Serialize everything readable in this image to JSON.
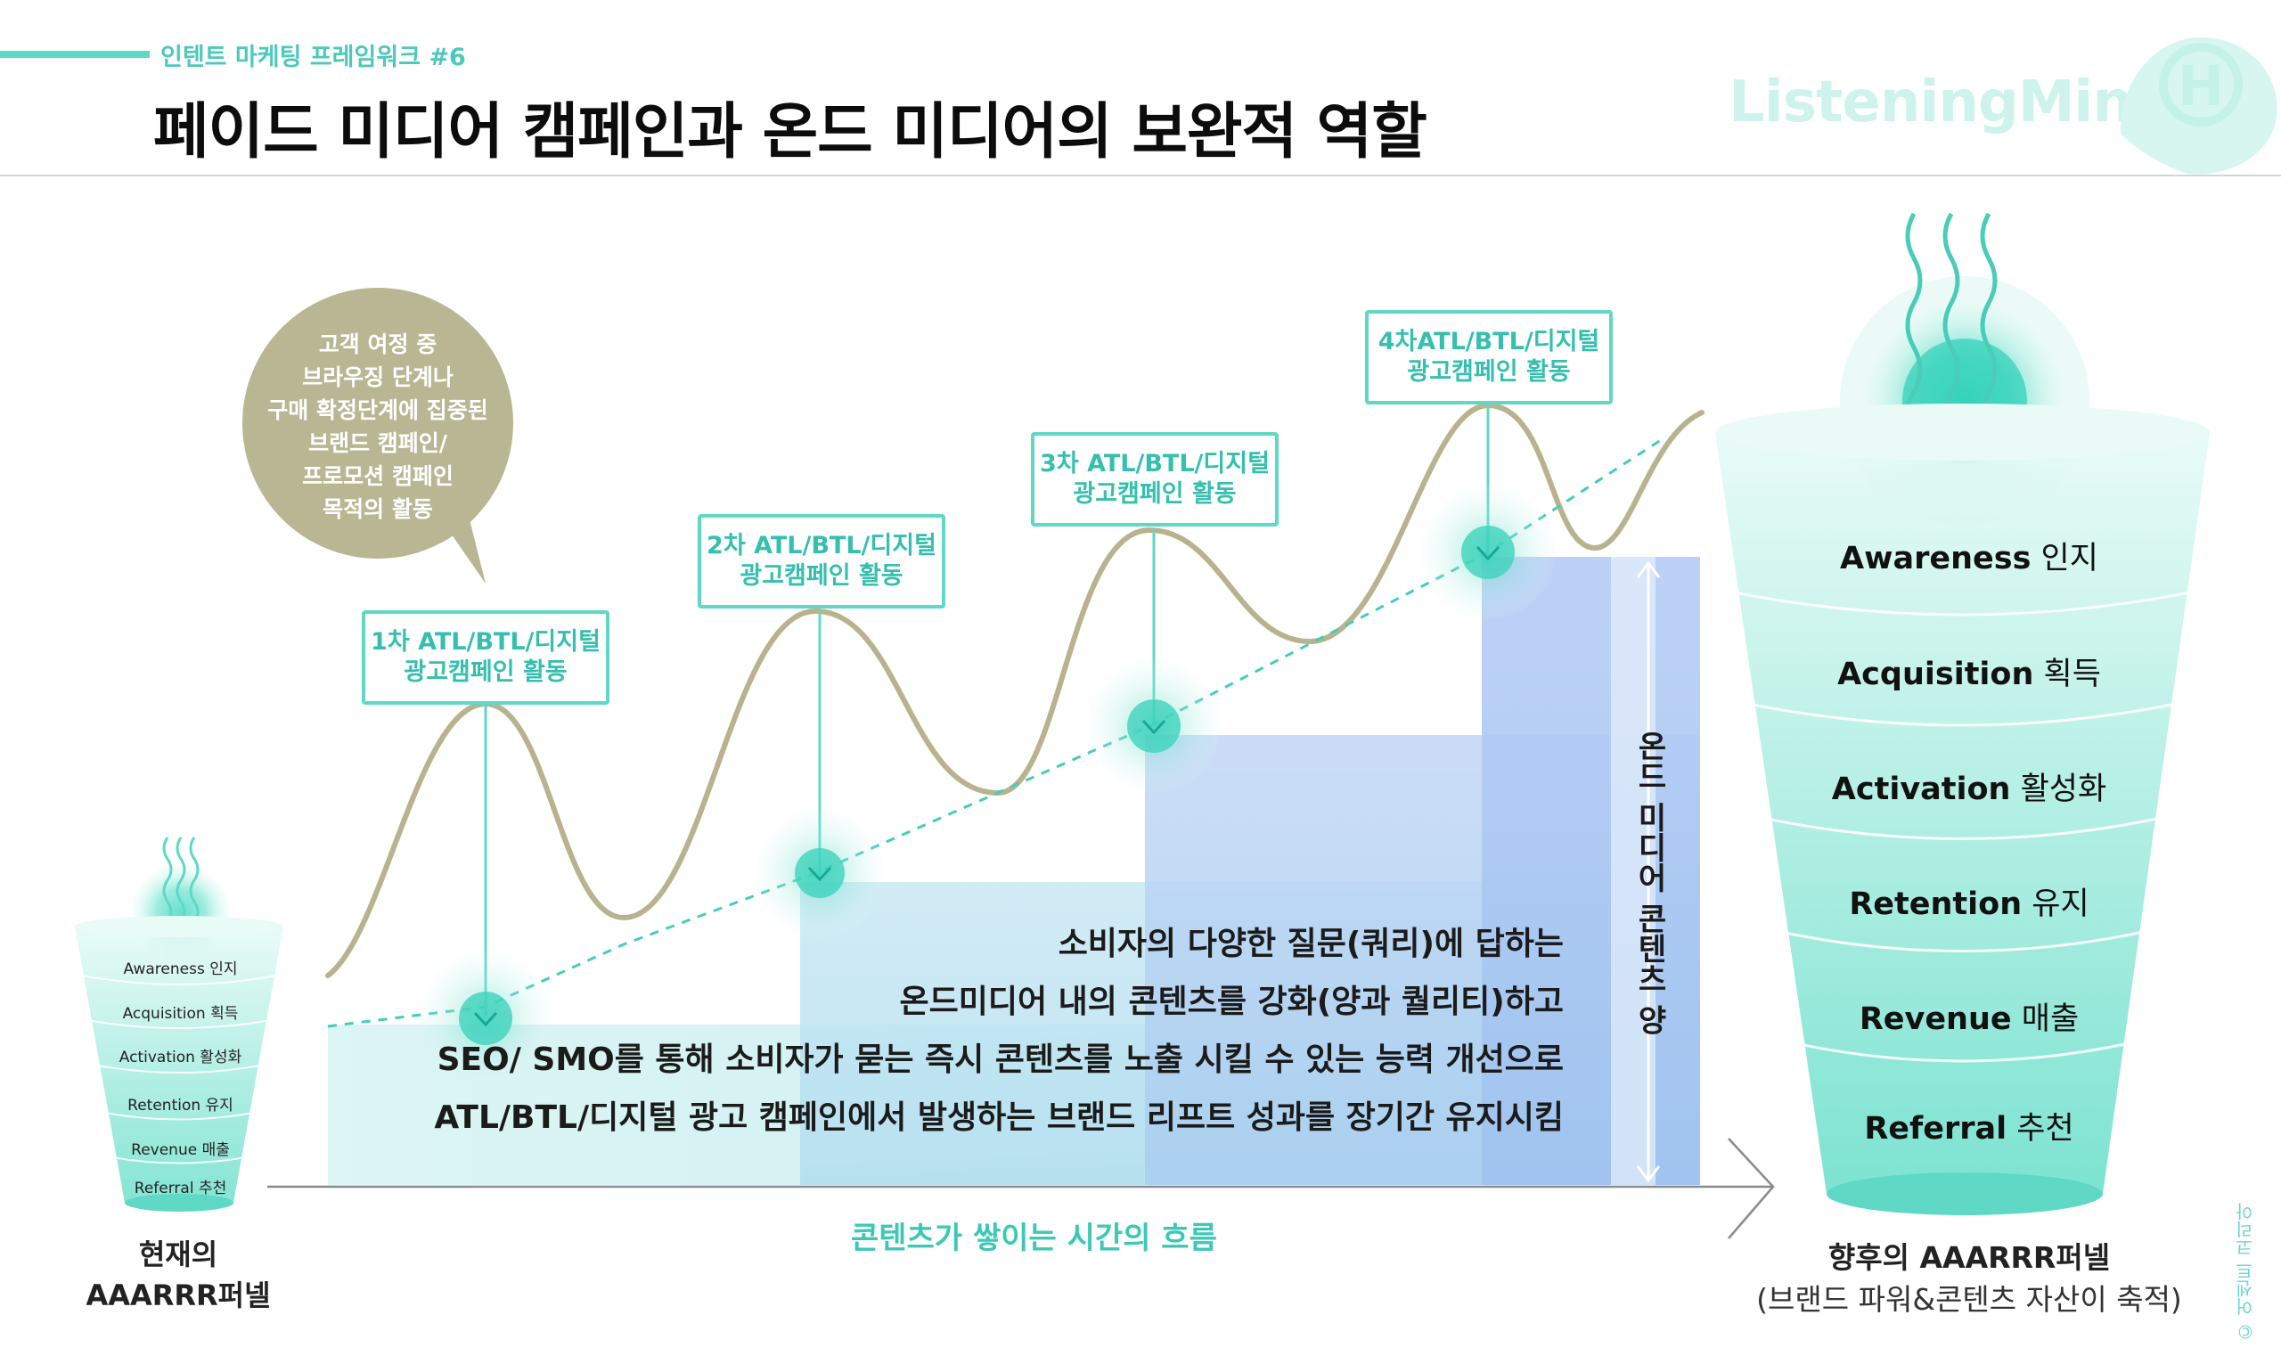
{
  "header": {
    "series_label": "인텐트 마케팅 프레임워크 #6",
    "title": "페이드 미디어 캠페인과 온드 미디어의 보완적 역할",
    "brand_name": "ListeningMind",
    "brand_mark": "H"
  },
  "speech_bubble": {
    "lines": [
      "고객 여정 중",
      "브라우징 단계나",
      "구매 확정단계에 집중된",
      "브랜드 캠페인/",
      "프로모션 캠페인",
      "목적의 활동"
    ]
  },
  "campaigns": [
    {
      "line1": "1차 ATL/BTL/디지털",
      "line2": "광고캠페인 활동"
    },
    {
      "line1": "2차 ATL/BTL/디지털",
      "line2": "광고캠페인 활동"
    },
    {
      "line1": "3차 ATL/BTL/디지털",
      "line2": "광고캠페인 활동"
    },
    {
      "line1": "4차ATL/BTL/디지털",
      "line2": "광고캠페인 활동"
    }
  ],
  "body_text": {
    "lines": [
      "소비자의 다양한 질문(쿼리)에 답하는",
      "온드미디어 내의 콘텐츠를 강화(양과 퀄리티)하고",
      "SEO/ SMO를 통해 소비자가 묻는 즉시 콘텐츠를 노출 시킬 수 있는 능력 개선으로",
      "ATL/BTL/디지털 광고 캠페인에서 발생하는 브랜드 리프트 성과를 장기간 유지시킴"
    ]
  },
  "vertical_axis_label": "온드 미디어 콘텐츠 양",
  "x_axis_label": "콘텐츠가 쌓이는 시간의 흐름",
  "current_funnel": {
    "caption_line1": "현재의",
    "caption_line2": "AAARRR퍼넬",
    "stages": [
      "Awareness 인지",
      "Acquisition 획득",
      "Activation 활성화",
      "Retention 유지",
      "Revenue 매출",
      "Referral 추천"
    ]
  },
  "future_funnel": {
    "title": "향후의 AAARRR퍼넬",
    "subtitle": "(브랜드 파워&콘텐츠 자산이 축적)",
    "stages": [
      {
        "en": "Awareness",
        "ko": "인지"
      },
      {
        "en": "Acquisition",
        "ko": "획득"
      },
      {
        "en": "Activation",
        "ko": "활성화"
      },
      {
        "en": "Retention",
        "ko": "유지"
      },
      {
        "en": "Revenue",
        "ko": "매출"
      },
      {
        "en": "Referral",
        "ko": "추천"
      }
    ]
  },
  "copyright_note": "© 어센트 코리아",
  "colors": {
    "mint": "#5fd8c6",
    "mint_text": "#35bfae",
    "wave": "#b9b48f",
    "bubble": "#b9b693",
    "bar_blue": "#a9c4f3",
    "bar_mint": "#bfeeee"
  }
}
